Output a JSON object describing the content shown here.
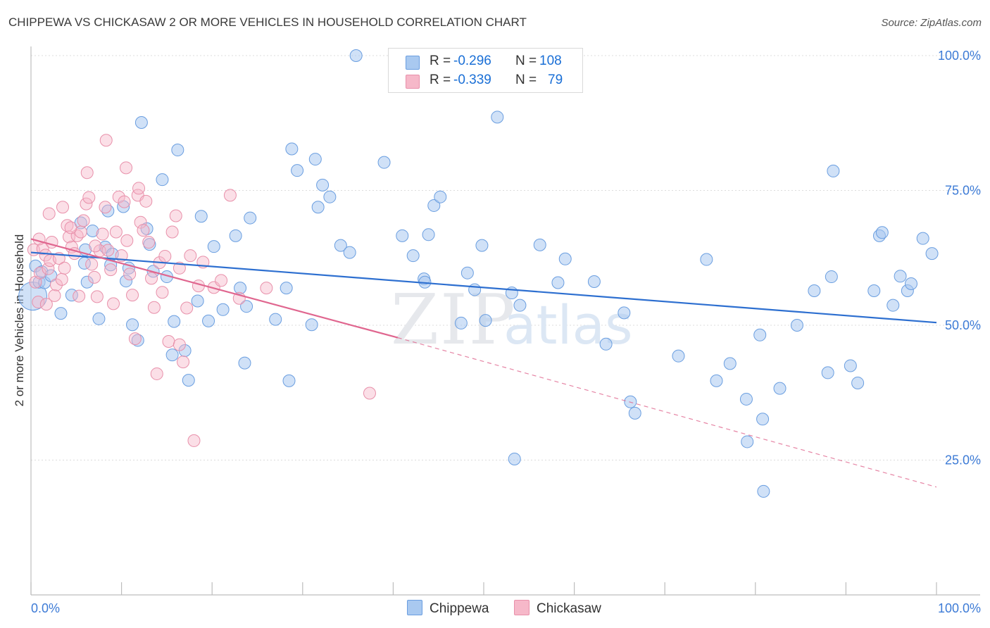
{
  "header": {
    "title": "CHIPPEWA VS CHICKASAW 2 OR MORE VEHICLES IN HOUSEHOLD CORRELATION CHART",
    "source": "Source: ZipAtlas.com"
  },
  "watermark": {
    "zip": "ZIP",
    "atlas": "atlas"
  },
  "legend": {
    "items": [
      {
        "r_label": "R =",
        "r_value": "-0.296",
        "n_label": "N =",
        "n_value": "108",
        "color": "#a9c9f0"
      },
      {
        "r_label": "R =",
        "r_value": "-0.339",
        "n_label": "N =",
        "n_value": "79",
        "color": "#f6b8c9"
      }
    ]
  },
  "bottom_legend": [
    "Chippewa",
    "Chickasaw"
  ],
  "chart_data": {
    "type": "scatter",
    "title": "CHIPPEWA VS CHICKASAW 2 OR MORE VEHICLES IN HOUSEHOLD CORRELATION CHART",
    "xlabel": "",
    "ylabel": "2 or more Vehicles in Household",
    "xlim": [
      0,
      100
    ],
    "ylim": [
      0,
      104
    ],
    "x_tick_labels": [
      "0.0%",
      "100.0%"
    ],
    "y_tick_labels": [
      {
        "value": 100,
        "label": "100.0%"
      },
      {
        "value": 75,
        "label": "75.0%"
      },
      {
        "value": 50,
        "label": "50.0%"
      },
      {
        "value": 25,
        "label": "25.0%"
      }
    ],
    "grid": true,
    "series": [
      {
        "name": "Chippewa",
        "color": "#a9c9f0",
        "edge": "#6a9ee0",
        "trend": {
          "x": [
            0,
            100
          ],
          "y": [
            63.5,
            50.5
          ],
          "color": "#2d6fd0"
        },
        "points": [
          [
            0.2,
            55.4
          ],
          [
            0.5,
            61
          ],
          [
            0.9,
            58
          ],
          [
            1.2,
            59.9
          ],
          [
            1.5,
            57.9
          ],
          [
            2.2,
            59.2
          ],
          [
            3.3,
            52.2
          ],
          [
            4.5,
            55.6
          ],
          [
            5.5,
            69
          ],
          [
            5.9,
            61.5
          ],
          [
            6,
            64
          ],
          [
            6.2,
            58
          ],
          [
            6.8,
            67.5
          ],
          [
            7.5,
            51.2
          ],
          [
            8.2,
            64.5
          ],
          [
            8.5,
            71.2
          ],
          [
            8.8,
            61.2
          ],
          [
            9,
            63.2
          ],
          [
            10.2,
            72
          ],
          [
            10.5,
            58.2
          ],
          [
            10.8,
            60.6
          ],
          [
            11.2,
            50.1
          ],
          [
            11.8,
            47.2
          ],
          [
            12.2,
            87.6
          ],
          [
            12.8,
            67.9
          ],
          [
            13.1,
            65
          ],
          [
            13.5,
            60
          ],
          [
            14.5,
            77
          ],
          [
            15,
            59
          ],
          [
            15.6,
            44.5
          ],
          [
            15.8,
            50.7
          ],
          [
            16.2,
            82.5
          ],
          [
            17,
            45.3
          ],
          [
            17.4,
            39.8
          ],
          [
            18.4,
            54.5
          ],
          [
            18.8,
            70.2
          ],
          [
            19.6,
            50.8
          ],
          [
            20.2,
            64.6
          ],
          [
            21.2,
            52.9
          ],
          [
            22.6,
            66.6
          ],
          [
            23.1,
            56.9
          ],
          [
            23.6,
            43
          ],
          [
            23.8,
            53.5
          ],
          [
            24.2,
            69.9
          ],
          [
            27,
            51.1
          ],
          [
            28.2,
            56.9
          ],
          [
            28.5,
            39.7
          ],
          [
            28.8,
            82.7
          ],
          [
            29.4,
            78.7
          ],
          [
            31,
            50.1
          ],
          [
            31.4,
            80.8
          ],
          [
            31.7,
            71.9
          ],
          [
            32.2,
            76
          ],
          [
            33,
            73.8
          ],
          [
            34.2,
            64.8
          ],
          [
            35.2,
            63.5
          ],
          [
            35.9,
            100
          ],
          [
            39,
            80.2
          ],
          [
            41,
            66.6
          ],
          [
            42.2,
            62.9
          ],
          [
            43.4,
            58.6
          ],
          [
            43.5,
            58
          ],
          [
            43.9,
            66.8
          ],
          [
            44.5,
            72.2
          ],
          [
            45.2,
            73.8
          ],
          [
            48.2,
            59.7
          ],
          [
            49,
            56.6
          ],
          [
            49.8,
            64.8
          ],
          [
            50.2,
            50.9
          ],
          [
            51.5,
            88.6
          ],
          [
            53.1,
            56
          ],
          [
            53.4,
            25.2
          ],
          [
            54,
            53.7
          ],
          [
            56.2,
            64.9
          ],
          [
            58.2,
            57.9
          ],
          [
            59,
            62.3
          ],
          [
            62.2,
            58.1
          ],
          [
            63.5,
            46.5
          ],
          [
            65.5,
            52.3
          ],
          [
            66.2,
            35.8
          ],
          [
            66.7,
            33.7
          ],
          [
            71.5,
            44.3
          ],
          [
            74.6,
            62.2
          ],
          [
            75.7,
            39.7
          ],
          [
            77.2,
            42.9
          ],
          [
            79,
            36.3
          ],
          [
            79.1,
            28.4
          ],
          [
            80.5,
            48.2
          ],
          [
            80.8,
            32.6
          ],
          [
            80.9,
            19.2
          ],
          [
            82.7,
            38.3
          ],
          [
            84.6,
            50
          ],
          [
            86.5,
            56.4
          ],
          [
            88,
            41.2
          ],
          [
            88.4,
            59
          ],
          [
            88.6,
            78.6
          ],
          [
            90.5,
            42.5
          ],
          [
            91.3,
            39.3
          ],
          [
            93.1,
            56.4
          ],
          [
            93.7,
            66.6
          ],
          [
            94,
            67.2
          ],
          [
            95.2,
            53.7
          ],
          [
            96,
            59.1
          ],
          [
            96.8,
            56.4
          ],
          [
            97.2,
            57.7
          ],
          [
            98.5,
            66.1
          ],
          [
            99.5,
            63.3
          ],
          [
            47.5,
            50.4
          ]
        ]
      },
      {
        "name": "Chickasaw",
        "color": "#f6b8c9",
        "edge": "#e890aa",
        "trend": {
          "x": [
            0,
            40.5
          ],
          "y": [
            66,
            47.7
          ],
          "dash_to": {
            "x": 100,
            "y": 20
          },
          "color": "#e0668f"
        },
        "points": [
          [
            0.3,
            64
          ],
          [
            0.5,
            58
          ],
          [
            0.8,
            54.3
          ],
          [
            1,
            59.7
          ],
          [
            1.3,
            64.2
          ],
          [
            1.6,
            63
          ],
          [
            1.9,
            60.5
          ],
          [
            2.1,
            62
          ],
          [
            2.3,
            65.4
          ],
          [
            2.6,
            55.5
          ],
          [
            2.8,
            57.5
          ],
          [
            3.1,
            62.4
          ],
          [
            3.4,
            58.5
          ],
          [
            3.7,
            60.6
          ],
          [
            4,
            68.5
          ],
          [
            4.2,
            66.4
          ],
          [
            4.5,
            64.5
          ],
          [
            4.8,
            63.3
          ],
          [
            5.1,
            66.6
          ],
          [
            5.5,
            67.3
          ],
          [
            5.8,
            69.4
          ],
          [
            6.1,
            72.5
          ],
          [
            6.4,
            73.7
          ],
          [
            6.7,
            61.3
          ],
          [
            7,
            58.9
          ],
          [
            7.3,
            55.3
          ],
          [
            7.6,
            63.8
          ],
          [
            7.9,
            66.9
          ],
          [
            8.2,
            71.9
          ],
          [
            8.5,
            63.9
          ],
          [
            8.8,
            60.3
          ],
          [
            9.1,
            54
          ],
          [
            9.4,
            67.3
          ],
          [
            9.7,
            73.8
          ],
          [
            10,
            62.9
          ],
          [
            10.3,
            72.9
          ],
          [
            10.6,
            65.7
          ],
          [
            10.9,
            59.5
          ],
          [
            11.2,
            55.6
          ],
          [
            11.5,
            47.5
          ],
          [
            11.8,
            74.1
          ],
          [
            12.1,
            69.1
          ],
          [
            12.4,
            67.6
          ],
          [
            12.7,
            73
          ],
          [
            13,
            65.4
          ],
          [
            13.3,
            58.7
          ],
          [
            13.6,
            53.3
          ],
          [
            13.9,
            41
          ],
          [
            14.2,
            61.6
          ],
          [
            14.5,
            56.1
          ],
          [
            14.8,
            62.8
          ],
          [
            15.2,
            47
          ],
          [
            15.6,
            67.3
          ],
          [
            16,
            70.3
          ],
          [
            16.4,
            60.6
          ],
          [
            16.8,
            43.2
          ],
          [
            17.2,
            53.2
          ],
          [
            17.6,
            62.9
          ],
          [
            18,
            28.6
          ],
          [
            18.5,
            57.3
          ],
          [
            19,
            61.7
          ],
          [
            20.2,
            57
          ],
          [
            21,
            58.3
          ],
          [
            22,
            74.1
          ],
          [
            23,
            55
          ],
          [
            26,
            56.9
          ],
          [
            37.4,
            37.4
          ],
          [
            4.4,
            68.1
          ],
          [
            2,
            70.7
          ],
          [
            8.3,
            84.3
          ],
          [
            10.5,
            79.2
          ],
          [
            6.2,
            78.3
          ],
          [
            11.9,
            75.4
          ],
          [
            16.4,
            46.4
          ],
          [
            1.7,
            53.9
          ],
          [
            3.5,
            71.9
          ],
          [
            7.1,
            64.7
          ],
          [
            0.9,
            66
          ],
          [
            5.3,
            55.4
          ]
        ]
      }
    ]
  }
}
